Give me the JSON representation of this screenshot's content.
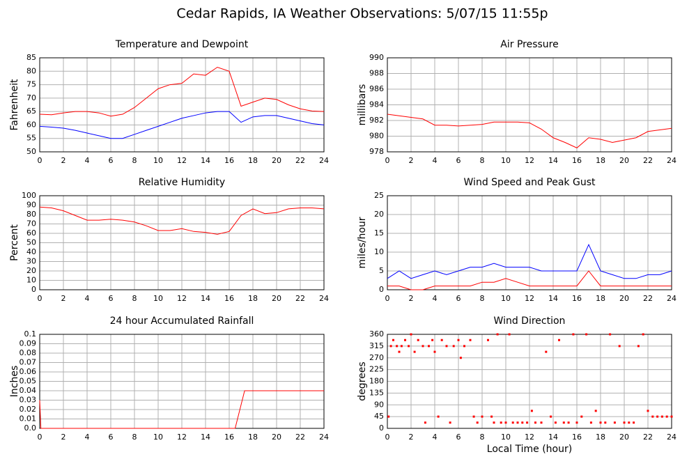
{
  "title": "Cedar Rapids, IA Weather Observations: 5/07/15 11:55p",
  "chart_data": [
    {
      "type": "line",
      "title": "Temperature and Dewpoint",
      "ylabel": "Fahrenheit",
      "xlim": [
        0,
        24
      ],
      "xticks": [
        0,
        2,
        4,
        6,
        8,
        10,
        12,
        14,
        16,
        18,
        20,
        22,
        24
      ],
      "ylim": [
        50,
        85
      ],
      "yticks": [
        50,
        55,
        60,
        65,
        70,
        75,
        80,
        85
      ],
      "grid": true,
      "x": [
        0,
        1,
        2,
        3,
        4,
        5,
        6,
        7,
        8,
        9,
        10,
        11,
        12,
        13,
        14,
        15,
        16,
        17,
        18,
        19,
        20,
        21,
        22,
        23,
        24
      ],
      "series": [
        {
          "color": "#ff0000",
          "values": [
            64,
            63.8,
            64.5,
            65,
            65,
            64.5,
            63.3,
            64,
            66.5,
            70,
            73.5,
            75,
            75.5,
            79,
            78.5,
            81.5,
            80,
            67,
            68.5,
            70,
            69.5,
            67.5,
            66,
            65.2,
            65
          ]
        },
        {
          "color": "#0000ff",
          "values": [
            59.5,
            59.2,
            58.8,
            58,
            57,
            56,
            55,
            55,
            56.5,
            58,
            59.5,
            61,
            62.5,
            63.5,
            64.5,
            65,
            65,
            61,
            63,
            63.5,
            63.5,
            62.5,
            61.5,
            60.5,
            60
          ]
        }
      ]
    },
    {
      "type": "line",
      "title": "Air Pressure",
      "ylabel": "millibars",
      "xlim": [
        0,
        24
      ],
      "xticks": [
        0,
        2,
        4,
        6,
        8,
        10,
        12,
        14,
        16,
        18,
        20,
        22,
        24
      ],
      "ylim": [
        978,
        990
      ],
      "yticks": [
        978,
        980,
        982,
        984,
        986,
        988,
        990
      ],
      "grid": true,
      "x": [
        0,
        1,
        2,
        3,
        4,
        5,
        6,
        7,
        8,
        9,
        10,
        11,
        12,
        13,
        14,
        15,
        16,
        17,
        18,
        19,
        20,
        21,
        22,
        23,
        24
      ],
      "series": [
        {
          "color": "#ff0000",
          "values": [
            982.8,
            982.6,
            982.4,
            982.2,
            981.4,
            981.4,
            981.3,
            981.4,
            981.5,
            981.8,
            981.8,
            981.8,
            981.7,
            980.9,
            979.8,
            979.2,
            978.5,
            979.8,
            979.6,
            979.2,
            979.5,
            979.8,
            980.6,
            980.8,
            981
          ]
        }
      ]
    },
    {
      "type": "line",
      "title": "Relative Humidity",
      "ylabel": "Percent",
      "xlim": [
        0,
        24
      ],
      "xticks": [
        0,
        2,
        4,
        6,
        8,
        10,
        12,
        14,
        16,
        18,
        20,
        22,
        24
      ],
      "ylim": [
        0,
        100
      ],
      "yticks": [
        0,
        10,
        20,
        30,
        40,
        50,
        60,
        70,
        80,
        90,
        100
      ],
      "grid": true,
      "x": [
        0,
        1,
        2,
        3,
        4,
        5,
        6,
        7,
        8,
        9,
        10,
        11,
        12,
        13,
        14,
        15,
        16,
        17,
        18,
        19,
        20,
        21,
        22,
        23,
        24
      ],
      "series": [
        {
          "color": "#ff0000",
          "values": [
            88,
            87,
            84,
            79,
            74,
            74,
            75,
            74,
            72,
            68,
            63,
            63,
            65,
            62,
            61,
            59,
            62,
            79,
            86,
            81,
            82,
            86,
            87,
            87,
            86
          ]
        }
      ]
    },
    {
      "type": "line",
      "title": "Wind Speed and Peak Gust",
      "ylabel": "miles/hour",
      "xlim": [
        0,
        24
      ],
      "xticks": [
        0,
        2,
        4,
        6,
        8,
        10,
        12,
        14,
        16,
        18,
        20,
        22,
        24
      ],
      "ylim": [
        0,
        25
      ],
      "yticks": [
        0,
        5,
        10,
        15,
        20,
        25
      ],
      "grid": true,
      "x": [
        0,
        1,
        2,
        3,
        4,
        5,
        6,
        7,
        8,
        9,
        10,
        11,
        12,
        13,
        14,
        15,
        16,
        17,
        18,
        19,
        20,
        21,
        22,
        23,
        24
      ],
      "series": [
        {
          "color": "#0000ff",
          "values": [
            3,
            5,
            3,
            4,
            5,
            4,
            5,
            6,
            6,
            7,
            6,
            6,
            6,
            5,
            5,
            5,
            5,
            12,
            5,
            4,
            3,
            3,
            4,
            4,
            5
          ]
        },
        {
          "color": "#ff0000",
          "values": [
            1,
            1,
            0,
            0,
            1,
            1,
            1,
            1,
            2,
            2,
            3,
            2,
            1,
            1,
            1,
            1,
            1,
            5,
            1,
            1,
            1,
            1,
            1,
            1,
            1
          ]
        }
      ]
    },
    {
      "type": "line",
      "title": "24 hour Accumulated Rainfall",
      "ylabel": "Inches",
      "xlim": [
        0,
        24
      ],
      "xticks": [
        0,
        2,
        4,
        6,
        8,
        10,
        12,
        14,
        16,
        18,
        20,
        22,
        24
      ],
      "ylim": [
        0,
        0.1
      ],
      "yticks": [
        {
          "value": 0,
          "label": "0.0"
        },
        0.01,
        0.02,
        0.03,
        0.04,
        0.05,
        0.06,
        0.07,
        0.08,
        0.09,
        0.1
      ],
      "grid": true,
      "x": [
        0,
        0.1,
        16.5,
        16.7,
        17.3,
        24
      ],
      "series": [
        {
          "color": "#ff0000",
          "values": [
            0.03,
            0,
            0,
            0.01,
            0.04,
            0.04
          ]
        }
      ]
    },
    {
      "type": "scatter",
      "title": "Wind Direction",
      "ylabel": "degrees",
      "xlabel": "Local Time (hour)",
      "xlim": [
        0,
        24
      ],
      "xticks": [
        0,
        2,
        4,
        6,
        8,
        10,
        12,
        14,
        16,
        18,
        20,
        22,
        24
      ],
      "ylim": [
        0,
        360
      ],
      "yticks": [
        0,
        45,
        90,
        135,
        180,
        225,
        270,
        315,
        360
      ],
      "grid": true,
      "color": "#ff0000",
      "x": [
        0.1,
        0.3,
        0.5,
        0.8,
        1,
        1.2,
        1.5,
        1.8,
        2,
        2.3,
        2.6,
        3,
        3.2,
        3.5,
        3.8,
        4,
        4.3,
        4.6,
        5,
        5.3,
        5.6,
        6,
        6.2,
        6.5,
        7,
        7.3,
        7.6,
        8,
        8.5,
        8.8,
        9,
        9.3,
        9.6,
        10,
        10.3,
        10.6,
        11,
        11.4,
        11.8,
        12.2,
        12.5,
        13,
        13.4,
        13.8,
        14.2,
        14.5,
        14.9,
        15.3,
        15.7,
        16,
        16.4,
        16.8,
        17.2,
        17.6,
        18,
        18.4,
        18.8,
        19.2,
        19.6,
        20,
        20.4,
        20.8,
        21.2,
        21.6,
        22,
        22.4,
        22.8,
        23.2,
        23.6,
        24
      ],
      "values": [
        45,
        315,
        338,
        315,
        293,
        315,
        338,
        315,
        360,
        293,
        338,
        315,
        22,
        315,
        338,
        293,
        45,
        338,
        315,
        22,
        315,
        338,
        270,
        315,
        338,
        45,
        22,
        45,
        338,
        45,
        22,
        360,
        22,
        22,
        360,
        22,
        22,
        22,
        22,
        67,
        22,
        22,
        293,
        45,
        22,
        338,
        22,
        22,
        360,
        22,
        45,
        360,
        22,
        67,
        22,
        22,
        360,
        22,
        315,
        22,
        22,
        22,
        315,
        360,
        67,
        45,
        45,
        45,
        45,
        45
      ]
    }
  ]
}
